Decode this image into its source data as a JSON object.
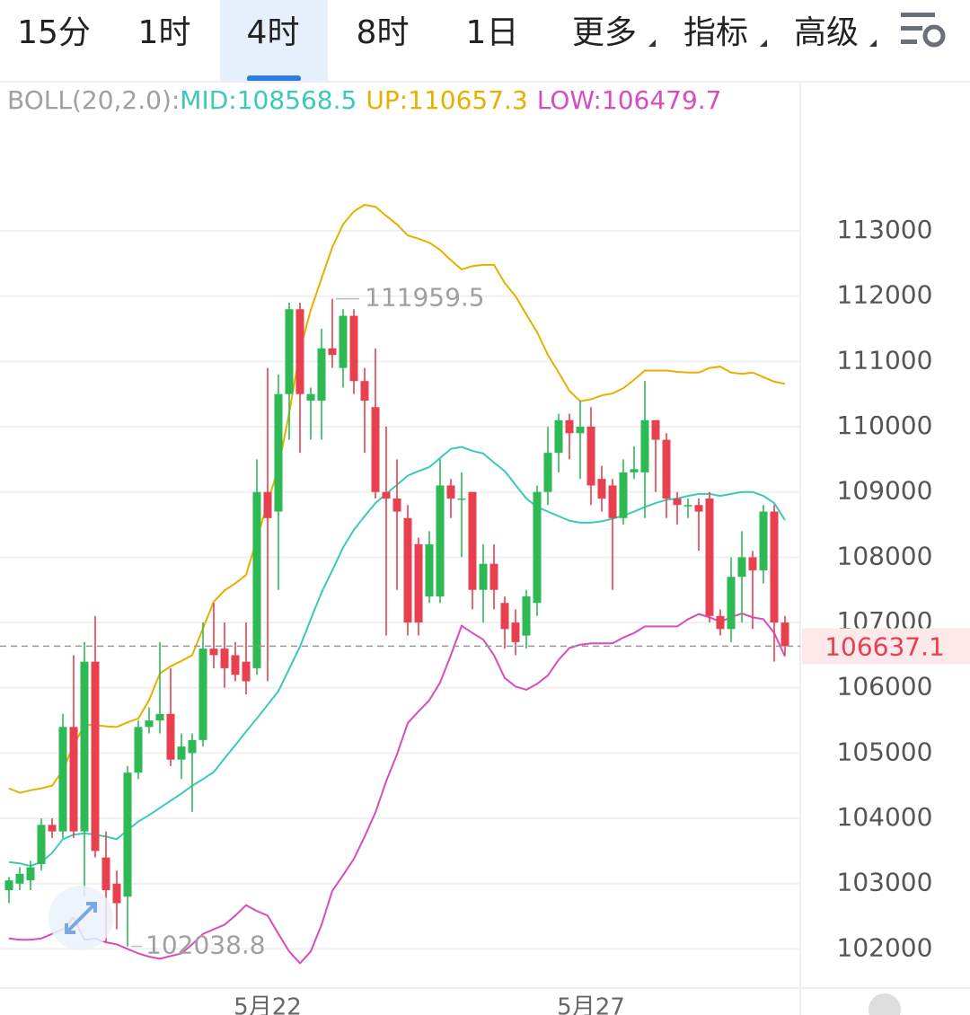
{
  "toolbar": {
    "tabs": [
      "15分",
      "1时",
      "4时",
      "8时",
      "1日",
      "更多",
      "指标",
      "高级"
    ],
    "active": 2
  },
  "chart_data": {
    "type": "candlestick",
    "indicator": "BOLL(20,2.0):",
    "categories": [
      null,
      null,
      null,
      null,
      null,
      null,
      null,
      null,
      null,
      null,
      null,
      null,
      null,
      null,
      null,
      null,
      null,
      null,
      null,
      null,
      null,
      null,
      null,
      null,
      "5月22",
      null,
      null,
      null,
      null,
      null,
      null,
      null,
      null,
      null,
      null,
      null,
      null,
      null,
      null,
      null,
      null,
      null,
      null,
      null,
      null,
      null,
      null,
      null,
      null,
      null,
      null,
      null,
      null,
      null,
      "5月27",
      null,
      null,
      null,
      null,
      null,
      null,
      null,
      null,
      null,
      null,
      null,
      null,
      null,
      null,
      null,
      null,
      null,
      null
    ],
    "open": [
      102900,
      103000,
      103050,
      103300,
      103900,
      103800,
      105400,
      103800,
      106400,
      103400,
      103000,
      102800,
      104700,
      105400,
      105500,
      105600,
      104900,
      105000,
      105200,
      106600,
      106600,
      106500,
      106400,
      106300,
      109000,
      108700,
      110500,
      111800,
      110400,
      110400,
      111200,
      110900,
      111700,
      110700,
      110300,
      109000,
      108900,
      108600,
      108200,
      107400,
      107400,
      109100,
      108900,
      109000,
      107500,
      107900,
      107300,
      107000,
      106800,
      107300,
      109000,
      109600,
      110100,
      109900,
      110000,
      109200,
      109100,
      108600,
      109300,
      109300,
      110100,
      109800,
      108900,
      108800,
      108800,
      108900,
      107100,
      106900,
      107700,
      108000,
      107800,
      108700,
      107000
    ],
    "high": [
      103100,
      103250,
      103350,
      104000,
      104000,
      105600,
      106500,
      106700,
      107100,
      103800,
      103200,
      104800,
      105500,
      105700,
      106700,
      106300,
      105300,
      105300,
      107000,
      107300,
      107000,
      106700,
      107000,
      109500,
      110900,
      110800,
      111900,
      111900,
      110600,
      111500,
      111959.5,
      111800,
      111800,
      110900,
      111200,
      110000,
      109500,
      108800,
      108300,
      108400,
      109500,
      109200,
      109300,
      109000,
      108200,
      108200,
      107400,
      107200,
      107500,
      109100,
      110000,
      110200,
      110200,
      110400,
      110300,
      109400,
      109200,
      109500,
      109700,
      110700,
      110100,
      109900,
      109000,
      108900,
      108900,
      109000,
      107200,
      108000,
      108400,
      108100,
      108800,
      108800,
      107100
    ],
    "low": [
      102700,
      102900,
      102900,
      103200,
      103700,
      103700,
      103700,
      102800,
      103400,
      102100,
      102300,
      102038.8,
      104600,
      105300,
      105300,
      104800,
      104600,
      104100,
      105100,
      106300,
      106000,
      106100,
      105900,
      106200,
      106100,
      107500,
      109800,
      109600,
      109800,
      109800,
      110900,
      110600,
      110500,
      109600,
      108900,
      106800,
      107500,
      106800,
      106800,
      107300,
      107300,
      108600,
      108000,
      107200,
      107000,
      107200,
      106600,
      106500,
      106600,
      107100,
      108800,
      109300,
      109500,
      109200,
      108800,
      108700,
      107500,
      108500,
      109200,
      108600,
      109000,
      108600,
      108500,
      108600,
      108100,
      107000,
      106800,
      106700,
      107000,
      106900,
      107600,
      106400,
      106500
    ],
    "close": [
      103050,
      103150,
      103250,
      103900,
      103800,
      105400,
      103800,
      106400,
      103500,
      102900,
      102700,
      104700,
      105400,
      105500,
      105600,
      104900,
      105100,
      105200,
      106600,
      106500,
      106300,
      106200,
      106100,
      109000,
      108600,
      110500,
      111800,
      110500,
      110500,
      111200,
      111100,
      111700,
      110700,
      110400,
      109000,
      108900,
      108700,
      107000,
      107000,
      108200,
      109100,
      108900,
      108900,
      107500,
      107900,
      107500,
      106900,
      106700,
      107400,
      109000,
      109600,
      110100,
      109900,
      110000,
      109100,
      108900,
      108600,
      109300,
      109350,
      110100,
      109800,
      108900,
      108800,
      108800,
      108700,
      107100,
      106900,
      107700,
      108000,
      107800,
      108700,
      107000,
      106637.1
    ],
    "up_color": "#2dba55",
    "down_color": "#e8404f",
    "series": [
      {
        "name": "MID:",
        "color": "#3ccab6",
        "values": [
          103330,
          103310,
          103270,
          103330,
          103470,
          103680,
          103750,
          103770,
          103750,
          103720,
          103680,
          103820,
          103950,
          104050,
          104160,
          104270,
          104380,
          104500,
          104600,
          104710,
          104920,
          105120,
          105330,
          105530,
          105740,
          105950,
          106290,
          106630,
          107050,
          107460,
          107800,
          108150,
          108420,
          108630,
          108830,
          108970,
          109110,
          109250,
          109320,
          109380,
          109520,
          109660,
          109690,
          109630,
          109590,
          109450,
          109320,
          109110,
          108900,
          108770,
          108700,
          108630,
          108560,
          108530,
          108530,
          108550,
          108590,
          108640,
          108700,
          108770,
          108830,
          108880,
          108900,
          108940,
          108970,
          108970,
          108940,
          108970,
          109000,
          109000,
          108940,
          108830,
          108568.5
        ]
      },
      {
        "name": "UP:",
        "color": "#e6b000",
        "values": [
          104460,
          104390,
          104430,
          104460,
          104500,
          104740,
          105120,
          105430,
          105430,
          105410,
          105400,
          105470,
          105530,
          105810,
          106220,
          106330,
          106410,
          106500,
          106910,
          107320,
          107490,
          107600,
          107730,
          108280,
          108830,
          109380,
          110210,
          111170,
          111790,
          112270,
          112750,
          113100,
          113300,
          113400,
          113370,
          113230,
          113100,
          112930,
          112880,
          112820,
          112710,
          112550,
          112410,
          112460,
          112480,
          112480,
          112200,
          112000,
          111720,
          111450,
          111100,
          110830,
          110550,
          110390,
          110420,
          110480,
          110510,
          110590,
          110720,
          110860,
          110860,
          110860,
          110840,
          110830,
          110830,
          110900,
          110920,
          110830,
          110810,
          110830,
          110760,
          110690,
          110657.3
        ]
      },
      {
        "name": "LOW:",
        "color": "#d84cbf",
        "values": [
          102160,
          102140,
          102140,
          102160,
          102230,
          102300,
          102480,
          102140,
          102160,
          102100,
          102070,
          102000,
          101930,
          101880,
          101850,
          101890,
          101930,
          102070,
          102230,
          102300,
          102370,
          102510,
          102670,
          102580,
          102510,
          102230,
          101960,
          101780,
          101960,
          102370,
          102890,
          103130,
          103380,
          103720,
          104090,
          104570,
          104980,
          105460,
          105640,
          105810,
          106080,
          106500,
          106950,
          106840,
          106740,
          106500,
          106150,
          106020,
          105970,
          106060,
          106190,
          106430,
          106610,
          106660,
          106680,
          106680,
          106680,
          106770,
          106840,
          106940,
          106940,
          106940,
          106940,
          107050,
          107130,
          107080,
          107010,
          107080,
          107140,
          107080,
          107050,
          106840,
          106479.7
        ]
      }
    ],
    "ylim": [
      101400,
      115230
    ],
    "yticks": [
      102000,
      103000,
      104000,
      105000,
      106000,
      107000,
      108000,
      109000,
      110000,
      111000,
      112000,
      113000
    ],
    "grid": true
  }
}
